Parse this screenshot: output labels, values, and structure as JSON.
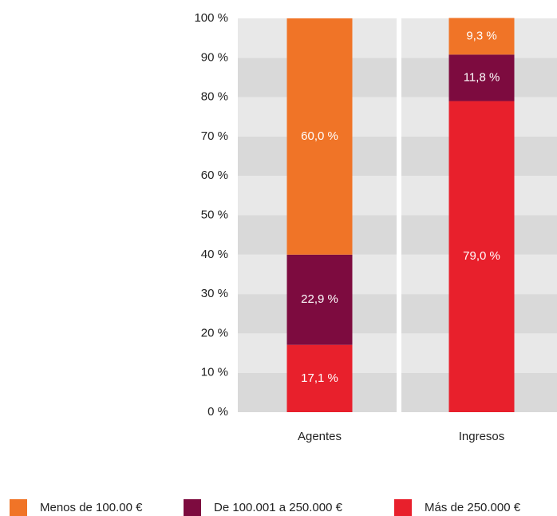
{
  "chart_data": {
    "type": "stacked_bar",
    "categories": [
      "Agentes",
      "Ingresos"
    ],
    "series": [
      {
        "name": "Menos de 100.00 €",
        "color": "#f07427",
        "values": [
          60.0,
          9.3
        ],
        "value_labels": [
          "60,0 %",
          "9,3 %"
        ]
      },
      {
        "name": "De 100.001 a 250.000 €",
        "color": "#7d0b3f",
        "values": [
          22.9,
          11.8
        ],
        "value_labels": [
          "22,9 %",
          "11,8 %"
        ]
      },
      {
        "name": "Más de 250.000 €",
        "color": "#e8202c",
        "values": [
          17.1,
          79.0
        ],
        "value_labels": [
          "17,1 %",
          "79,0 %"
        ]
      }
    ],
    "ylim": [
      0,
      100
    ],
    "yticks": [
      {
        "value": 0,
        "label": "0 %"
      },
      {
        "value": 10,
        "label": "10 %"
      },
      {
        "value": 20,
        "label": "20 %"
      },
      {
        "value": 30,
        "label": "30 %"
      },
      {
        "value": 40,
        "label": "40 %"
      },
      {
        "value": 50,
        "label": "50 %"
      },
      {
        "value": 60,
        "label": "60 %"
      },
      {
        "value": 70,
        "label": "70 %"
      },
      {
        "value": 80,
        "label": "80 %"
      },
      {
        "value": 90,
        "label": "90 %"
      },
      {
        "value": 100,
        "label": "100 %"
      }
    ],
    "legend": "bottom"
  }
}
